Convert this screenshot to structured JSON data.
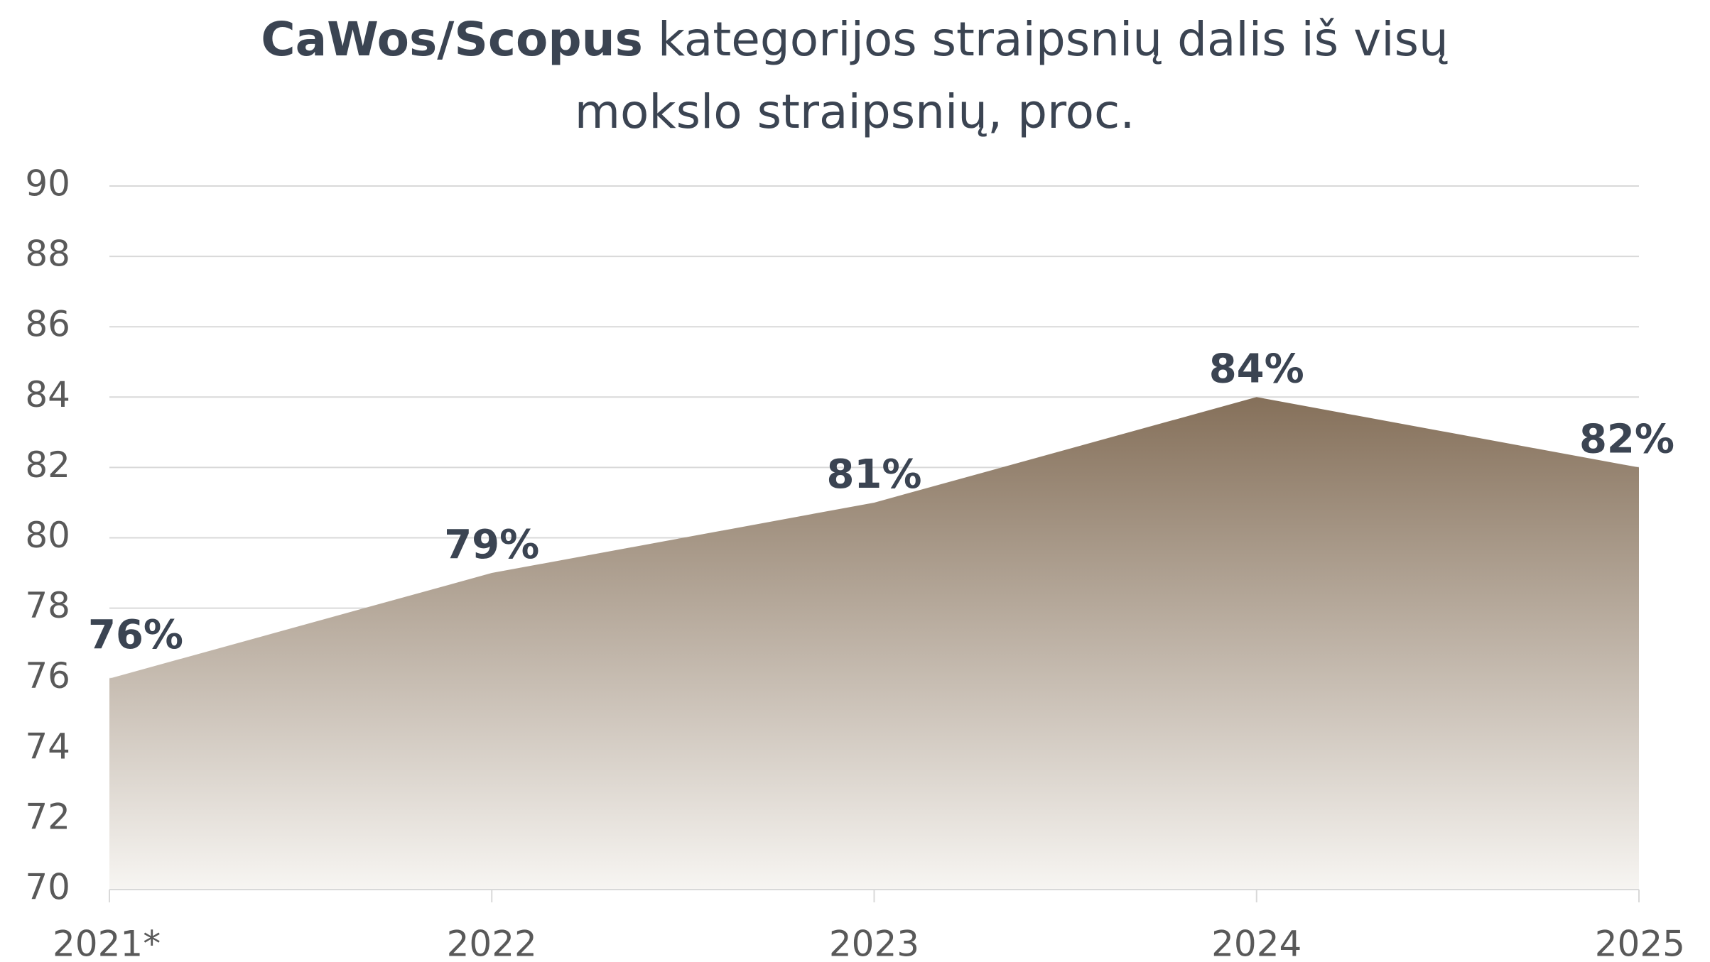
{
  "chart_data": {
    "type": "area",
    "title": [
      "CaWos/Scopus",
      "kategorijos straipsnių dalis iš visų",
      "mokslo straipsnių, proc."
    ],
    "categories": [
      "2021*",
      "2022",
      "2023",
      "2024",
      "2025"
    ],
    "values": [
      76,
      79,
      81,
      84,
      82
    ],
    "value_labels": [
      "76%",
      "79%",
      "81%",
      "84%",
      "82%"
    ],
    "color": [
      "#85705a",
      "#f7f5f2"
    ],
    "ylim": [
      70,
      90
    ],
    "yticks": [
      70,
      72,
      74,
      76,
      78,
      80,
      82,
      84,
      86,
      88,
      90
    ],
    "grid": true
  }
}
